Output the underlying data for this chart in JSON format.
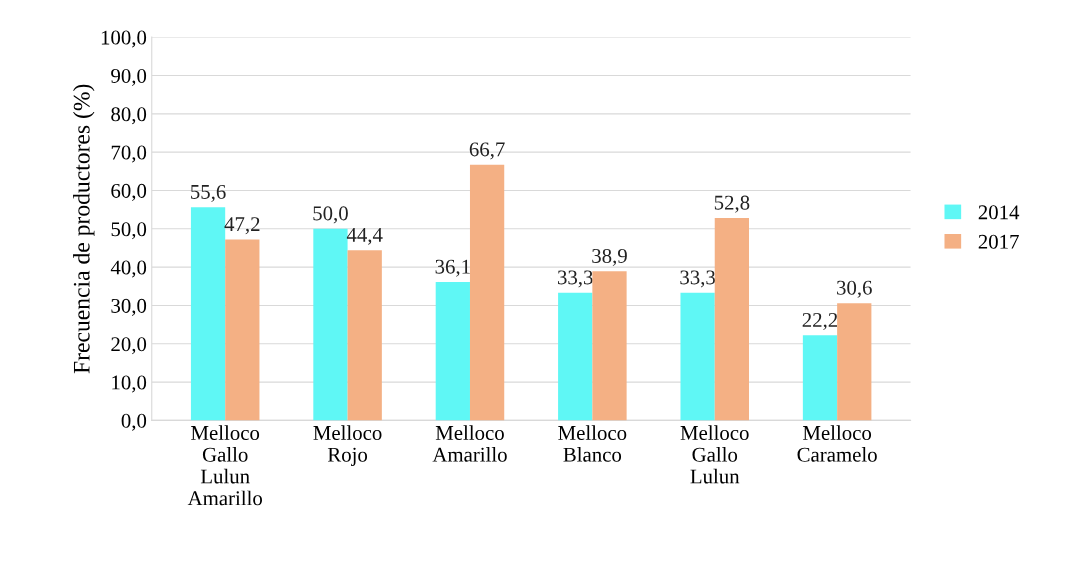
{
  "chart_data": {
    "type": "bar",
    "ylabel": "Frecuencia de productores (%)",
    "categories": [
      "Melloco\nGallo\nLulun\nAmarillo",
      "Melloco\nRojo",
      "Melloco\nAmarillo",
      "Melloco\nBlanco",
      "Melloco\nGallo\nLulun",
      "Melloco\nCaramelo"
    ],
    "series": [
      {
        "name": "2014",
        "color": "#5ff7f5",
        "values": [
          55.6,
          50.0,
          36.1,
          33.3,
          33.3,
          22.2
        ],
        "value_labels": [
          "55,6",
          "50,0",
          "36,1",
          "33,3",
          "33,3",
          "22,2"
        ]
      },
      {
        "name": "2017",
        "color": "#f4b084",
        "values": [
          47.2,
          44.4,
          66.7,
          38.9,
          52.8,
          30.6
        ],
        "value_labels": [
          "47,2",
          "44,4",
          "66,7",
          "38,9",
          "52,8",
          "30,6"
        ]
      }
    ],
    "ylim": [
      0,
      100
    ],
    "yticks": [
      {
        "value": 0,
        "label": "0,0"
      },
      {
        "value": 10,
        "label": "10,0"
      },
      {
        "value": 20,
        "label": "20,0"
      },
      {
        "value": 30,
        "label": "30,0"
      },
      {
        "value": 40,
        "label": "40,0"
      },
      {
        "value": 50,
        "label": "50,0"
      },
      {
        "value": 60,
        "label": "60,0"
      },
      {
        "value": 70,
        "label": "70,0"
      },
      {
        "value": 80,
        "label": "80,0"
      },
      {
        "value": 90,
        "label": "90,0"
      },
      {
        "value": 100,
        "label": "100,0"
      }
    ],
    "grid": "y",
    "legend": "right"
  }
}
